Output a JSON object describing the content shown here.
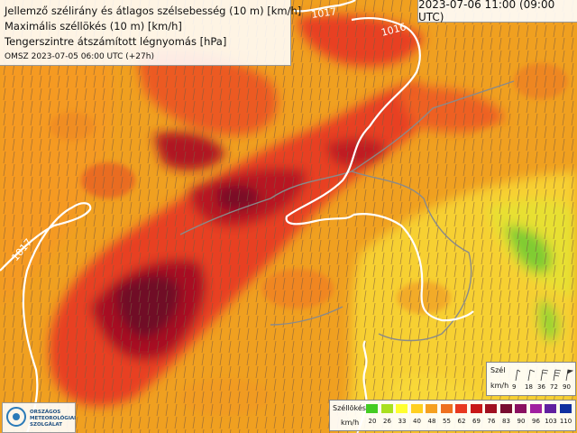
{
  "header": {
    "line1": "Jellemző szélirány és átlagos szélsebesség (10 m) [km/h]",
    "line2": "Maximális széllökés (10 m) [km/h]",
    "line3": "Tengerszintre átszámított légnyomás [hPa]",
    "line4": "OMSZ 2023-07-05 06:00 UTC (+27h)"
  },
  "valid_time": "2023-07-06 11:00 (09:00 UTC)",
  "isobars": {
    "label_1017_top": "1017",
    "label_1016": "1016",
    "label_1017_left": "1017"
  },
  "legend_wind": {
    "title": "Szél",
    "unit": "km/h",
    "values": [
      "9",
      "18",
      "36",
      "72",
      "90"
    ]
  },
  "legend_gust": {
    "title": "Széllökés",
    "unit": "km/h",
    "values": [
      "20",
      "26",
      "33",
      "40",
      "48",
      "55",
      "62",
      "69",
      "76",
      "83",
      "90",
      "96",
      "103",
      "110"
    ],
    "colors": [
      "#44cc22",
      "#a8e020",
      "#ffff30",
      "#ffd020",
      "#f5a020",
      "#ee7020",
      "#e83820",
      "#c81818",
      "#a01020",
      "#780c30",
      "#8a1060",
      "#a020a0",
      "#6020a0",
      "#1030a0"
    ]
  },
  "logo": {
    "line1": "ORSZÁGOS",
    "line2": "METEOROLÓGIAI",
    "line3": "SZOLGÁLAT"
  },
  "colors": {
    "accent": "#2a7ab8",
    "isobar": "#ffffff",
    "border": "#8a8a8a"
  }
}
